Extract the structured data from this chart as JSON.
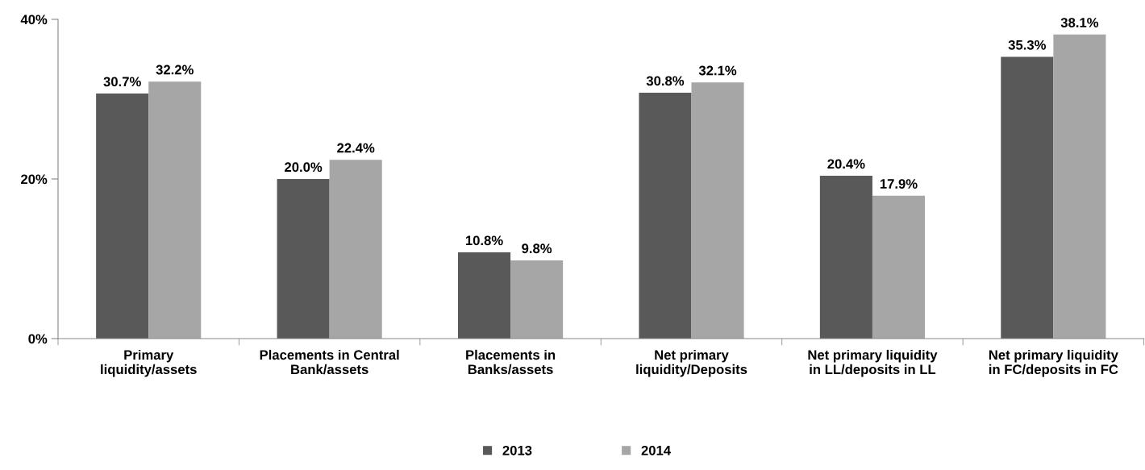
{
  "chart_data": {
    "type": "bar",
    "categories": [
      "Primary\nliquidity/assets",
      "Placements in Central\nBank/assets",
      "Placements in\nBanks/assets",
      "Net primary\nliquidity/Deposits",
      "Net primary liquidity\nin LL/deposits in LL",
      "Net primary liquidity\nin FC/deposits in FC"
    ],
    "series": [
      {
        "name": "2013",
        "color": "#595959",
        "values": [
          30.7,
          20.0,
          10.8,
          30.8,
          20.4,
          35.3
        ],
        "value_labels": [
          "30.7%",
          "20.0%",
          "10.8%",
          "30.8%",
          "20.4%",
          "35.3%"
        ]
      },
      {
        "name": "2014",
        "color": "#a6a6a6",
        "values": [
          32.2,
          22.4,
          9.8,
          32.1,
          17.9,
          38.1
        ],
        "value_labels": [
          "32.2%",
          "22.4%",
          "9.8%",
          "32.1%",
          "17.9%",
          "38.1%"
        ]
      }
    ],
    "ylim": [
      0,
      40
    ],
    "yticks": [
      {
        "value": 0,
        "label": "0%"
      },
      {
        "value": 20,
        "label": "20%"
      },
      {
        "value": 40,
        "label": "40%"
      }
    ],
    "grid": false,
    "legend": "bottom"
  }
}
